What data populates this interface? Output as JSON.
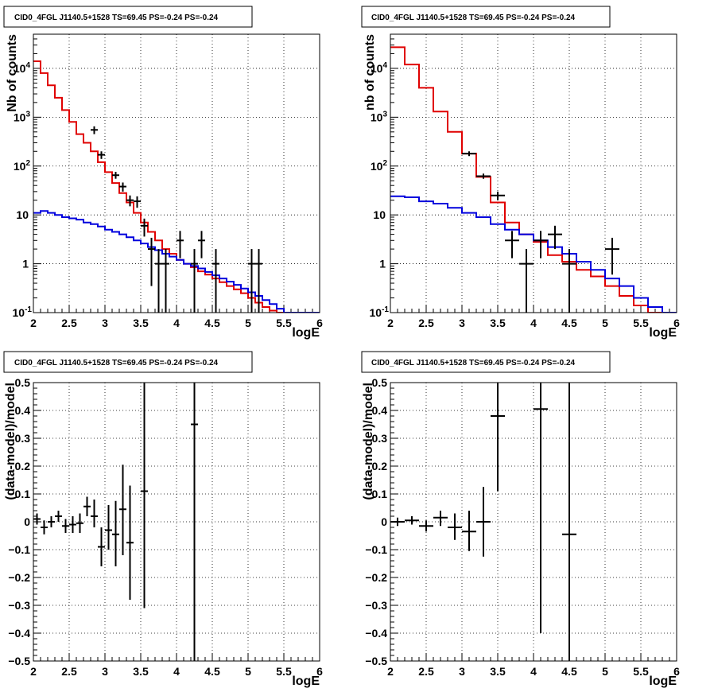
{
  "page": {
    "background": "#ffffff"
  },
  "colors": {
    "data": "#000000",
    "model_total": "#e00000",
    "model_component": "#0000dd",
    "grid": "#000000"
  },
  "chart_data": [
    {
      "type": "line",
      "title": "CID0_4FGL J1140.5+1528 TS=69.45 PS=-0.24 PS=-0.24",
      "xlabel": "logE",
      "ylabel": "Nb of counts",
      "xlim": [
        2,
        6
      ],
      "ylim": [
        0.1,
        50000
      ],
      "yscale": "log",
      "xticks": [
        "2",
        "2.5",
        "3",
        "3.5",
        "4",
        "4.5",
        "5",
        "5.5",
        "6"
      ],
      "yticks": [
        "10^-1",
        "1",
        "10",
        "10^2",
        "10^3",
        "10^4"
      ],
      "grid": true,
      "series": [
        {
          "kind": "step",
          "color": "#e00000",
          "x_edges": [
            2.0,
            2.1,
            2.2,
            2.3,
            2.4,
            2.5,
            2.6,
            2.7,
            2.8,
            2.9,
            3.0,
            3.1,
            3.2,
            3.3,
            3.4,
            3.5,
            3.6,
            3.7,
            3.8,
            3.9,
            4.0,
            4.1,
            4.2,
            4.3,
            4.4,
            4.5,
            4.6,
            4.7,
            4.8,
            4.9,
            5.0,
            5.1,
            5.2,
            5.3,
            5.4,
            5.5,
            5.6,
            5.7,
            5.8,
            5.9,
            6.0
          ],
          "values": [
            14000,
            8000,
            4500,
            2500,
            1400,
            800,
            450,
            300,
            200,
            120,
            75,
            45,
            28,
            18,
            11,
            7,
            4.5,
            3,
            2,
            1.6,
            1.2,
            1.0,
            0.85,
            0.7,
            0.6,
            0.5,
            0.42,
            0.35,
            0.3,
            0.25,
            0.2,
            0.16,
            0.13,
            0.11,
            0.1,
            0.1,
            0.1,
            0.1,
            0.1,
            0.1
          ]
        },
        {
          "kind": "step",
          "color": "#0000dd",
          "x_edges": [
            2.0,
            2.1,
            2.2,
            2.3,
            2.4,
            2.5,
            2.6,
            2.7,
            2.8,
            2.9,
            3.0,
            3.1,
            3.2,
            3.3,
            3.4,
            3.5,
            3.6,
            3.7,
            3.8,
            3.9,
            4.0,
            4.1,
            4.2,
            4.3,
            4.4,
            4.5,
            4.6,
            4.7,
            4.8,
            4.9,
            5.0,
            5.1,
            5.2,
            5.3,
            5.4,
            5.5,
            5.6,
            5.7,
            5.8,
            5.9,
            6.0
          ],
          "values": [
            11,
            12,
            11,
            10,
            9,
            8.5,
            8,
            7,
            6.5,
            5.8,
            5,
            4.5,
            4,
            3.5,
            3,
            2.6,
            2.2,
            1.9,
            1.6,
            1.4,
            1.2,
            1.0,
            0.9,
            0.8,
            0.68,
            0.58,
            0.5,
            0.43,
            0.37,
            0.31,
            0.26,
            0.22,
            0.18,
            0.15,
            0.12,
            0.1,
            0.1,
            0.1,
            0.1,
            0.1
          ]
        },
        {
          "kind": "points",
          "color": "#000000",
          "points": [
            {
              "x": 2.85,
              "y": 550,
              "lo": 450,
              "hi": 650,
              "xerr": 0.05
            },
            {
              "x": 2.95,
              "y": 170,
              "lo": 140,
              "hi": 200,
              "xerr": 0.05
            },
            {
              "x": 3.15,
              "y": 65,
              "lo": 55,
              "hi": 76,
              "xerr": 0.05
            },
            {
              "x": 3.25,
              "y": 38,
              "lo": 30,
              "hi": 46,
              "xerr": 0.05
            },
            {
              "x": 3.35,
              "y": 20,
              "lo": 15,
              "hi": 25,
              "xerr": 0.05
            },
            {
              "x": 3.45,
              "y": 19,
              "lo": 14,
              "hi": 24,
              "xerr": 0.05
            },
            {
              "x": 3.55,
              "y": 6,
              "lo": 3.6,
              "hi": 8.4,
              "xerr": 0.05
            },
            {
              "x": 3.65,
              "y": 2,
              "lo": 0.35,
              "hi": 3.4,
              "xerr": 0.05
            },
            {
              "x": 3.75,
              "y": 1,
              "lo": 0.1,
              "hi": 2,
              "xerr": 0.05
            },
            {
              "x": 3.85,
              "y": 1,
              "lo": 0.1,
              "hi": 2,
              "xerr": 0.05
            },
            {
              "x": 4.05,
              "y": 3,
              "lo": 1.3,
              "hi": 4.7,
              "xerr": 0.05
            },
            {
              "x": 4.25,
              "y": 1,
              "lo": 0.1,
              "hi": 2,
              "xerr": 0.05
            },
            {
              "x": 4.35,
              "y": 3,
              "lo": 1.3,
              "hi": 4.7,
              "xerr": 0.05
            },
            {
              "x": 4.55,
              "y": 1,
              "lo": 0.1,
              "hi": 2,
              "xerr": 0.05
            },
            {
              "x": 5.05,
              "y": 1,
              "lo": 0.1,
              "hi": 2,
              "xerr": 0.05
            },
            {
              "x": 5.15,
              "y": 1,
              "lo": 0.1,
              "hi": 2,
              "xerr": 0.05
            }
          ]
        }
      ]
    },
    {
      "type": "line",
      "title": "CID0_4FGL J1140.5+1528 TS=69.45 PS=-0.24 PS=-0.24",
      "xlabel": "logE",
      "ylabel": "nb of counts",
      "xlim": [
        2,
        6
      ],
      "ylim": [
        0.1,
        50000
      ],
      "yscale": "log",
      "xticks": [
        "2",
        "2.5",
        "3",
        "3.5",
        "4",
        "4.5",
        "5",
        "5.5",
        "6"
      ],
      "yticks": [
        "10^-1",
        "1",
        "10",
        "10^2",
        "10^3",
        "10^4"
      ],
      "grid": true,
      "series": [
        {
          "kind": "step",
          "color": "#e00000",
          "x_edges": [
            2.0,
            2.2,
            2.4,
            2.6,
            2.8,
            3.0,
            3.2,
            3.4,
            3.6,
            3.8,
            4.0,
            4.2,
            4.4,
            4.6,
            4.8,
            5.0,
            5.2,
            5.4,
            5.6,
            5.8,
            6.0
          ],
          "values": [
            27000,
            12000,
            4000,
            1300,
            500,
            180,
            60,
            18,
            7,
            4,
            2.8,
            1.5,
            1.1,
            0.75,
            0.55,
            0.35,
            0.22,
            0.14,
            0.1,
            0.1
          ]
        },
        {
          "kind": "step",
          "color": "#0000dd",
          "x_edges": [
            2.0,
            2.2,
            2.4,
            2.6,
            2.8,
            3.0,
            3.2,
            3.4,
            3.6,
            3.8,
            4.0,
            4.2,
            4.4,
            4.6,
            4.8,
            5.0,
            5.2,
            5.4,
            5.6,
            5.8,
            6.0
          ],
          "values": [
            24,
            23,
            19,
            17,
            14,
            11,
            9,
            6.5,
            5,
            4,
            3,
            2.2,
            1.6,
            1.1,
            0.75,
            0.5,
            0.35,
            0.2,
            0.13,
            0.1
          ]
        },
        {
          "kind": "points",
          "color": "#000000",
          "points": [
            {
              "x": 3.1,
              "y": 180,
              "lo": 160,
              "hi": 200,
              "xerr": 0.1
            },
            {
              "x": 3.3,
              "y": 62,
              "lo": 55,
              "hi": 70,
              "xerr": 0.1
            },
            {
              "x": 3.5,
              "y": 25,
              "lo": 20,
              "hi": 30,
              "xerr": 0.1
            },
            {
              "x": 3.7,
              "y": 3,
              "lo": 1.3,
              "hi": 4.7,
              "xerr": 0.1
            },
            {
              "x": 3.9,
              "y": 1,
              "lo": 0.1,
              "hi": 2,
              "xerr": 0.1
            },
            {
              "x": 4.1,
              "y": 3,
              "lo": 1.3,
              "hi": 4.7,
              "xerr": 0.1
            },
            {
              "x": 4.3,
              "y": 4,
              "lo": 2,
              "hi": 6,
              "xerr": 0.1
            },
            {
              "x": 4.5,
              "y": 1,
              "lo": 0.1,
              "hi": 2,
              "xerr": 0.1
            },
            {
              "x": 5.1,
              "y": 2,
              "lo": 0.6,
              "hi": 3.4,
              "xerr": 0.1
            }
          ]
        }
      ]
    },
    {
      "type": "scatter",
      "title": "CID0_4FGL J1140.5+1528 TS=69.45 PS=-0.24 PS=-0.24",
      "xlabel": "logE",
      "ylabel": "(data-model)/model",
      "xlim": [
        2,
        6
      ],
      "ylim": [
        -0.5,
        0.5
      ],
      "yscale": "linear",
      "xticks": [
        "2",
        "2.5",
        "3",
        "3.5",
        "4",
        "4.5",
        "5",
        "5.5",
        "6"
      ],
      "yticks": [
        "−0.5",
        "−0.4",
        "−0.3",
        "−0.2",
        "−0.1",
        "0",
        "0.1",
        "0.2",
        "0.3",
        "0.4",
        "0.5"
      ],
      "grid": true,
      "series": [
        {
          "kind": "points",
          "color": "#000000",
          "points": [
            {
              "x": 2.05,
              "y": 0.01,
              "lo": -0.01,
              "hi": 0.03,
              "xerr": 0.05
            },
            {
              "x": 2.15,
              "y": -0.02,
              "lo": -0.045,
              "hi": 0.005,
              "xerr": 0.05
            },
            {
              "x": 2.25,
              "y": 0.0,
              "lo": -0.02,
              "hi": 0.02,
              "xerr": 0.05
            },
            {
              "x": 2.35,
              "y": 0.02,
              "lo": 0.0,
              "hi": 0.04,
              "xerr": 0.05
            },
            {
              "x": 2.45,
              "y": -0.015,
              "lo": -0.04,
              "hi": 0.01,
              "xerr": 0.05
            },
            {
              "x": 2.55,
              "y": -0.01,
              "lo": -0.04,
              "hi": 0.02,
              "xerr": 0.05
            },
            {
              "x": 2.65,
              "y": -0.005,
              "lo": -0.04,
              "hi": 0.03,
              "xerr": 0.05
            },
            {
              "x": 2.75,
              "y": 0.055,
              "lo": 0.02,
              "hi": 0.09,
              "xerr": 0.05
            },
            {
              "x": 2.85,
              "y": 0.02,
              "lo": -0.02,
              "hi": 0.08,
              "xerr": 0.05
            },
            {
              "x": 2.95,
              "y": -0.09,
              "lo": -0.16,
              "hi": -0.02,
              "xerr": 0.05
            },
            {
              "x": 3.05,
              "y": -0.03,
              "lo": -0.1,
              "hi": 0.06,
              "xerr": 0.05
            },
            {
              "x": 3.15,
              "y": -0.045,
              "lo": -0.16,
              "hi": 0.075,
              "xerr": 0.05
            },
            {
              "x": 3.25,
              "y": 0.045,
              "lo": -0.12,
              "hi": 0.205,
              "xerr": 0.05
            },
            {
              "x": 3.35,
              "y": -0.075,
              "lo": -0.28,
              "hi": 0.13,
              "xerr": 0.05
            },
            {
              "x": 3.55,
              "y": 0.11,
              "lo": -0.31,
              "hi": 0.5,
              "xerr": 0.05
            },
            {
              "x": 4.25,
              "y": 0.35,
              "lo": -0.5,
              "hi": 0.5,
              "xerr": 0.05
            }
          ]
        }
      ]
    },
    {
      "type": "scatter",
      "title": "CID0_4FGL J1140.5+1528 TS=69.45 PS=-0.24 PS=-0.24",
      "xlabel": "logE",
      "ylabel": "(data-model)/model",
      "xlim": [
        2,
        6
      ],
      "ylim": [
        -0.5,
        0.5
      ],
      "yscale": "linear",
      "xticks": [
        "2",
        "2.5",
        "3",
        "3.5",
        "4",
        "4.5",
        "5",
        "5.5",
        "6"
      ],
      "yticks": [
        "−0.5",
        "−0.4",
        "−0.3",
        "−0.2",
        "−0.1",
        "0",
        "0.1",
        "0.2",
        "0.3",
        "0.4",
        "0.5"
      ],
      "grid": true,
      "series": [
        {
          "kind": "points",
          "color": "#000000",
          "points": [
            {
              "x": 2.1,
              "y": 0.0,
              "lo": -0.015,
              "hi": 0.015,
              "xerr": 0.1
            },
            {
              "x": 2.3,
              "y": 0.005,
              "lo": -0.01,
              "hi": 0.02,
              "xerr": 0.1
            },
            {
              "x": 2.5,
              "y": -0.015,
              "lo": -0.035,
              "hi": 0.005,
              "xerr": 0.1
            },
            {
              "x": 2.7,
              "y": 0.015,
              "lo": -0.015,
              "hi": 0.04,
              "xerr": 0.1
            },
            {
              "x": 2.9,
              "y": -0.02,
              "lo": -0.065,
              "hi": 0.03,
              "xerr": 0.1
            },
            {
              "x": 3.1,
              "y": -0.035,
              "lo": -0.105,
              "hi": 0.04,
              "xerr": 0.1
            },
            {
              "x": 3.3,
              "y": 0.0,
              "lo": -0.125,
              "hi": 0.125,
              "xerr": 0.1
            },
            {
              "x": 3.5,
              "y": 0.38,
              "lo": 0.11,
              "hi": 0.5,
              "xerr": 0.1
            },
            {
              "x": 4.1,
              "y": 0.405,
              "lo": -0.4,
              "hi": 0.5,
              "xerr": 0.1
            },
            {
              "x": 4.5,
              "y": -0.045,
              "lo": -0.5,
              "hi": 0.5,
              "xerr": 0.1
            }
          ]
        }
      ]
    }
  ]
}
